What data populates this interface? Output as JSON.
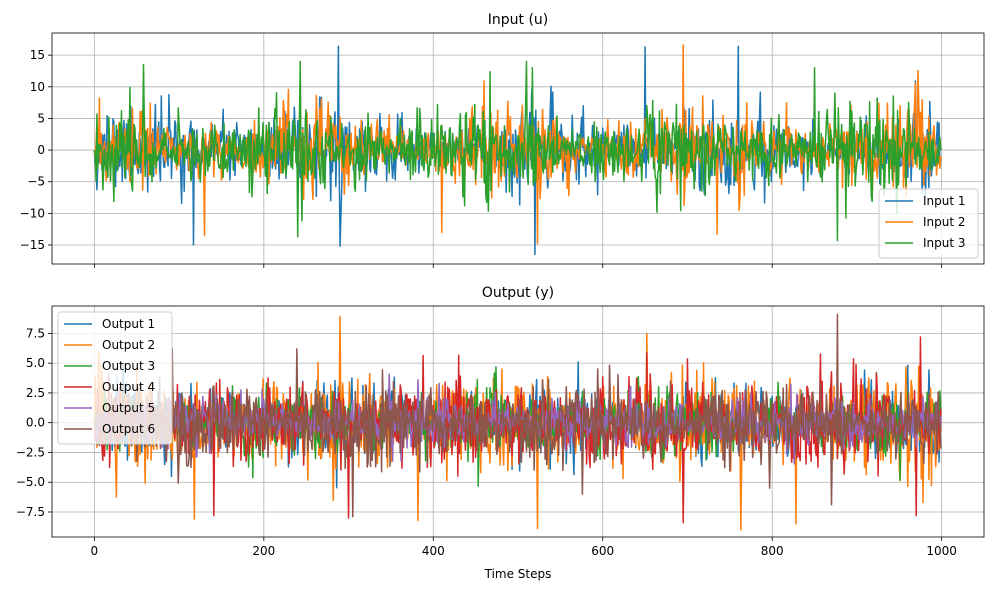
{
  "chart_data": [
    {
      "type": "line",
      "title": "Input (u)",
      "xlabel": "",
      "ylabel": "",
      "xlim": [
        -50,
        1050
      ],
      "ylim": [
        -18,
        18.5
      ],
      "xticks": [
        0,
        200,
        400,
        600,
        800,
        1000
      ],
      "xtick_labels": [
        "",
        "",
        "",
        "",
        "",
        ""
      ],
      "yticks": [
        -15,
        -10,
        -5,
        0,
        5,
        10,
        15
      ],
      "ytick_labels": [
        "−15",
        "−10",
        "−5",
        "0",
        "5",
        "10",
        "15"
      ],
      "grid": true,
      "legend_position": "lower-right",
      "n_points": 1000,
      "series": [
        {
          "name": "Input 1",
          "color": "#1f77b4",
          "amplitude": 3.5,
          "seed": 11,
          "extremes": [
            [
              117,
              -15.0
            ],
            [
              288,
              16.4
            ],
            [
              290,
              -15.2
            ],
            [
              520,
              -16.5
            ],
            [
              650,
              16.3
            ],
            [
              760,
              -15.9
            ],
            [
              760,
              16.4
            ]
          ]
        },
        {
          "name": "Input 2",
          "color": "#ff7f0e",
          "amplitude": 3.5,
          "seed": 23,
          "extremes": [
            [
              130,
              -13.5
            ],
            [
              410,
              -13.0
            ],
            [
              523,
              -14.8
            ],
            [
              695,
              16.6
            ],
            [
              735,
              -13.3
            ],
            [
              972,
              12.6
            ]
          ]
        },
        {
          "name": "Input 3",
          "color": "#2ca02c",
          "amplitude": 3.8,
          "seed": 37,
          "extremes": [
            [
              58,
              13.5
            ],
            [
              240,
              -13.7
            ],
            [
              243,
              14.0
            ],
            [
              510,
              14.0
            ],
            [
              517,
              13.0
            ],
            [
              877,
              -14.3
            ],
            [
              850,
              13.0
            ]
          ]
        }
      ]
    },
    {
      "type": "line",
      "title": "Output (y)",
      "xlabel": "Time Steps",
      "ylabel": "",
      "xlim": [
        -50,
        1050
      ],
      "ylim": [
        -9.6,
        9.8
      ],
      "xticks": [
        0,
        200,
        400,
        600,
        800,
        1000
      ],
      "xtick_labels": [
        "0",
        "200",
        "400",
        "600",
        "800",
        "1000"
      ],
      "yticks": [
        -7.5,
        -5.0,
        -2.5,
        0.0,
        2.5,
        5.0,
        7.5
      ],
      "ytick_labels": [
        "−7.5",
        "−5.0",
        "−2.5",
        "0.0",
        "2.5",
        "5.0",
        "7.5"
      ],
      "grid": true,
      "legend_position": "upper-left",
      "n_points": 1000,
      "series": [
        {
          "name": "Output 1",
          "color": "#1f77b4",
          "amplitude": 1.8,
          "seed": 51,
          "extremes": []
        },
        {
          "name": "Output 2",
          "color": "#ff7f0e",
          "amplitude": 2.3,
          "seed": 63,
          "extremes": [
            [
              118,
              -8.1
            ],
            [
              290,
              8.9
            ],
            [
              382,
              -8.2
            ],
            [
              523,
              -8.9
            ],
            [
              763,
              -9.0
            ],
            [
              828,
              -8.5
            ],
            [
              652,
              7.5
            ]
          ]
        },
        {
          "name": "Output 3",
          "color": "#2ca02c",
          "amplitude": 1.6,
          "seed": 71,
          "extremes": []
        },
        {
          "name": "Output 4",
          "color": "#d62728",
          "amplitude": 2.2,
          "seed": 83,
          "extremes": [
            [
              141,
              -7.8
            ],
            [
              300,
              -8.0
            ],
            [
              695,
              8.3
            ],
            [
              695,
              -8.4
            ],
            [
              970,
              -7.8
            ],
            [
              975,
              7.2
            ]
          ]
        },
        {
          "name": "Output 5",
          "color": "#9467bd",
          "amplitude": 1.3,
          "seed": 97,
          "extremes": []
        },
        {
          "name": "Output 6",
          "color": "#8c564b",
          "amplitude": 2.1,
          "seed": 101,
          "extremes": [
            [
              239,
              6.2
            ],
            [
              305,
              -7.9
            ],
            [
              877,
              9.1
            ],
            [
              870,
              -6.9
            ]
          ]
        }
      ]
    }
  ]
}
